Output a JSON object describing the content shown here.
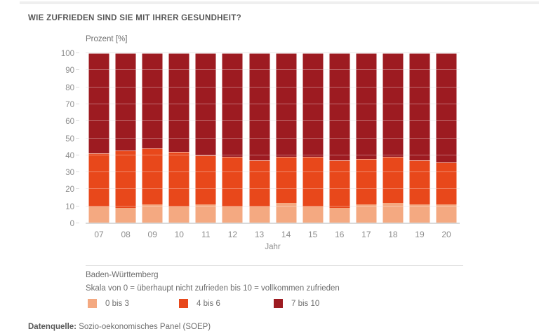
{
  "header": {
    "title": "WIE ZUFRIEDEN SIND SIE MIT IHRER GESUNDHEIT?"
  },
  "axes": {
    "y_title": "Prozent [%]",
    "x_title": "Jahr"
  },
  "notes": {
    "region": "Baden-Württemberg",
    "scale": "Skala von 0 = überhaupt nicht zufrieden bis 10 = vollkommen zufrieden"
  },
  "footer": {
    "label": "Datenquelle:",
    "text": "Sozio-oekonomisches Panel (SOEP)"
  },
  "chart_data": {
    "type": "bar",
    "stacked": true,
    "title": "WIE ZUFRIEDEN SIND SIE MIT IHRER GESUNDHEIT?",
    "xlabel": "Jahr",
    "ylabel": "Prozent [%]",
    "ylim": [
      0,
      100
    ],
    "y_ticks": [
      0,
      10,
      20,
      30,
      40,
      50,
      60,
      70,
      80,
      90,
      100
    ],
    "grid": true,
    "legend_position": "bottom",
    "region_note": "Baden-Württemberg",
    "scale_note": "Skala von 0 = überhaupt nicht zufrieden bis 10 = vollkommen zufrieden",
    "categories": [
      "07",
      "08",
      "09",
      "10",
      "11",
      "12",
      "13",
      "14",
      "15",
      "16",
      "17",
      "18",
      "19",
      "20"
    ],
    "series": [
      {
        "name": "0 bis 3",
        "color": "#F4A981",
        "values": [
          10,
          9,
          11,
          10,
          11,
          10,
          10,
          12,
          10,
          9,
          11,
          12,
          11,
          11
        ]
      },
      {
        "name": "4 bis 6",
        "color": "#E8481B",
        "values": [
          31,
          34,
          33,
          32,
          29,
          29,
          27,
          27,
          29,
          28,
          27,
          27,
          26,
          25
        ]
      },
      {
        "name": "7 bis 10",
        "color": "#9D1B21",
        "values": [
          59,
          57,
          56,
          58,
          60,
          61,
          63,
          61,
          61,
          63,
          62,
          61,
          63,
          64
        ]
      }
    ]
  },
  "style": {
    "gridline_color": "#e7e7e7",
    "axis_text_color": "#8d8d8d",
    "title_color": "#575757"
  }
}
